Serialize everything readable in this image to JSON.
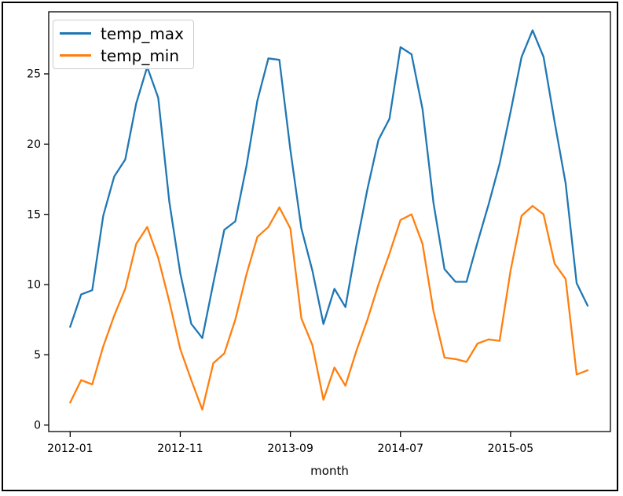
{
  "figure": {
    "background_color": "#ffffff",
    "border_color": "#000000",
    "xlabel": "month"
  },
  "legend": {
    "position": "upper left",
    "entries": [
      {
        "label": "temp_max",
        "color": "#1f77b4"
      },
      {
        "label": "temp_min",
        "color": "#ff7f0e"
      }
    ]
  },
  "chart_data": {
    "type": "line",
    "title": "",
    "xlabel": "month",
    "ylabel": "",
    "grid": false,
    "legend_position": "upper left",
    "x": [
      "2012-01",
      "2012-02",
      "2012-03",
      "2012-04",
      "2012-05",
      "2012-06",
      "2012-07",
      "2012-08",
      "2012-09",
      "2012-10",
      "2012-11",
      "2012-12",
      "2013-01",
      "2013-02",
      "2013-03",
      "2013-04",
      "2013-05",
      "2013-06",
      "2013-07",
      "2013-08",
      "2013-09",
      "2013-10",
      "2013-11",
      "2013-12",
      "2014-01",
      "2014-02",
      "2014-03",
      "2014-04",
      "2014-05",
      "2014-06",
      "2014-07",
      "2014-08",
      "2014-09",
      "2014-10",
      "2014-11",
      "2014-12",
      "2015-01",
      "2015-02",
      "2015-03",
      "2015-04",
      "2015-05",
      "2015-06",
      "2015-07",
      "2015-08",
      "2015-09",
      "2015-10",
      "2015-11",
      "2015-12"
    ],
    "series": [
      {
        "name": "temp_max",
        "color": "#1f77b4",
        "values": [
          7.0,
          9.3,
          9.6,
          14.9,
          17.7,
          18.9,
          22.9,
          25.5,
          23.3,
          15.9,
          10.8,
          7.2,
          6.2,
          10.1,
          13.9,
          14.5,
          18.4,
          23.1,
          26.1,
          26.0,
          19.6,
          14.0,
          11.0,
          7.2,
          9.7,
          8.4,
          12.8,
          16.8,
          20.3,
          21.8,
          26.9,
          26.4,
          22.5,
          15.8,
          11.1,
          10.2,
          10.2,
          13.0,
          15.7,
          18.6,
          22.3,
          26.2,
          28.1,
          26.2,
          21.6,
          17.2,
          10.1,
          8.5
        ]
      },
      {
        "name": "temp_min",
        "color": "#ff7f0e",
        "values": [
          1.6,
          3.2,
          2.9,
          5.6,
          7.8,
          9.7,
          12.9,
          14.1,
          11.9,
          8.8,
          5.4,
          3.2,
          1.1,
          4.4,
          5.1,
          7.5,
          10.7,
          13.4,
          14.1,
          15.5,
          14.0,
          7.6,
          5.7,
          1.8,
          4.1,
          2.8,
          5.3,
          7.5,
          10.0,
          12.2,
          14.6,
          15.0,
          12.9,
          8.1,
          4.8,
          4.7,
          4.5,
          5.8,
          6.1,
          6.0,
          11.0,
          14.9,
          15.6,
          15.0,
          11.5,
          10.4,
          3.6,
          3.9
        ]
      }
    ],
    "yticks": [
      0,
      5,
      10,
      15,
      20,
      25
    ],
    "xticks": {
      "indices": [
        0,
        10,
        20,
        30,
        40
      ],
      "labels": [
        "2012-01",
        "2012-11",
        "2013-09",
        "2014-07",
        "2015-05"
      ]
    },
    "xlim_index": [
      -1.95,
      49.07
    ],
    "ylim": [
      -0.46,
      29.42
    ]
  }
}
